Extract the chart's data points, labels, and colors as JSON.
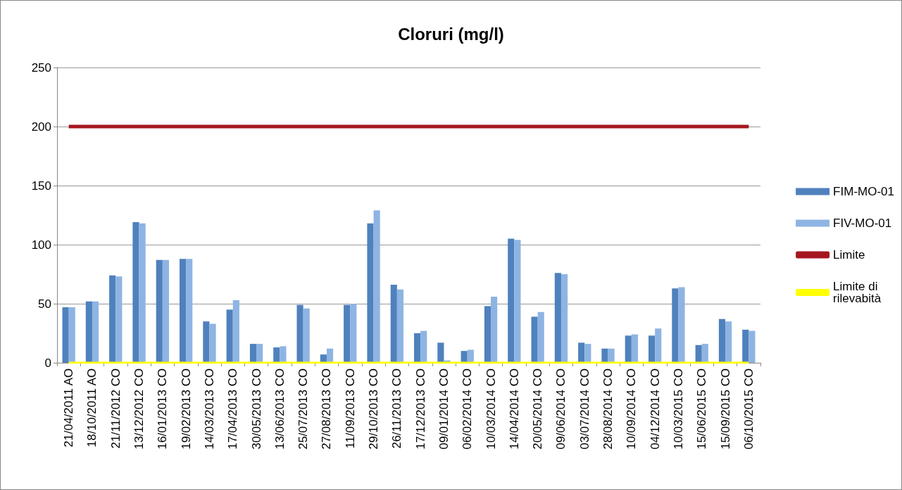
{
  "chart_data": {
    "type": "bar",
    "title": "Cloruri (mg/l)",
    "categories": [
      "21/04/2011 AO",
      "18/10/2011 AO",
      "21/11/2012 CO",
      "13/12/2012 CO",
      "16/01/2013 CO",
      "19/02/2013 CO",
      "14/03/2013 CO",
      "17/04/2013 CO",
      "30/05/2013 CO",
      "13/06/2013 CO",
      "25/07/2013 CO",
      "27/08/2013 CO",
      "11/09/2013 CO",
      "29/10/2013 CO",
      "26/11/2013 CO",
      "17/12/2013 CO",
      "09/01/2014 CO",
      "06/02/2014 CO",
      "10/03/2014 CO",
      "14/04/2014 CO",
      "20/05/2014 CO",
      "09/06/2014 CO",
      "03/07/2014 CO",
      "28/08/2014 CO",
      "10/09/2014 CO",
      "04/12/2014 CO",
      "10/03/2015 CO",
      "15/06/2015 CO",
      "15/09/2015 CO",
      "06/10/2015 CO"
    ],
    "series": [
      {
        "name": "FIM-MO-01",
        "color": "#4f81bd",
        "values": [
          47,
          52,
          74,
          119,
          87,
          88,
          35,
          45,
          16,
          13,
          49,
          7,
          49,
          118,
          66,
          25,
          17,
          10,
          48,
          105,
          39,
          76,
          17,
          12,
          23,
          23,
          63,
          15,
          37,
          28
        ]
      },
      {
        "name": "FIV-MO-01",
        "color": "#8eb4e3",
        "values": [
          47,
          52,
          73,
          118,
          87,
          88,
          33,
          53,
          16,
          14,
          46,
          12,
          50,
          129,
          62,
          27,
          2,
          11,
          56,
          104,
          43,
          75,
          16,
          12,
          24,
          29,
          64,
          16,
          35,
          27
        ]
      },
      {
        "name": "Limite",
        "type": "line",
        "color": "#a5171f",
        "values": [
          200,
          200,
          200,
          200,
          200,
          200,
          200,
          200,
          200,
          200,
          200,
          200,
          200,
          200,
          200,
          200,
          200,
          200,
          200,
          200,
          200,
          200,
          200,
          200,
          200,
          200,
          200,
          200,
          200,
          200
        ]
      },
      {
        "name": "Limite di\nrilevabità",
        "type": "line",
        "color": "#ffff00",
        "values": [
          0,
          0,
          0,
          0,
          0,
          0,
          0,
          0,
          0,
          0,
          0,
          0,
          0,
          0,
          0,
          0,
          0,
          0,
          0,
          0,
          0,
          0,
          0,
          0,
          0,
          0,
          0,
          0,
          0,
          0
        ]
      }
    ],
    "ylim": [
      0,
      250
    ],
    "yticks": [
      0,
      50,
      100,
      150,
      200,
      250
    ],
    "grid": "y",
    "legend": "right",
    "marker": "none"
  }
}
